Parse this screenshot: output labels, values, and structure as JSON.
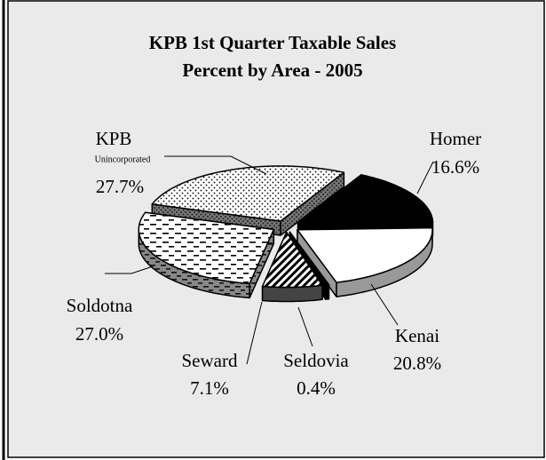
{
  "chart_data": {
    "type": "pie3d",
    "title": [
      "KPB 1st Quarter Taxable Sales",
      "Percent by Area - 2005"
    ],
    "categories": [
      "Homer",
      "Kenai",
      "Seldovia",
      "Seward",
      "Soldotna",
      [
        "KPB",
        "Unincorporated"
      ]
    ],
    "values": [
      16.6,
      20.8,
      0.4,
      7.1,
      27.0,
      27.7
    ],
    "value_labels": [
      "16.6%",
      "20.8%",
      "0.4%",
      "7.1%",
      "27.0%",
      "27.7%"
    ]
  }
}
